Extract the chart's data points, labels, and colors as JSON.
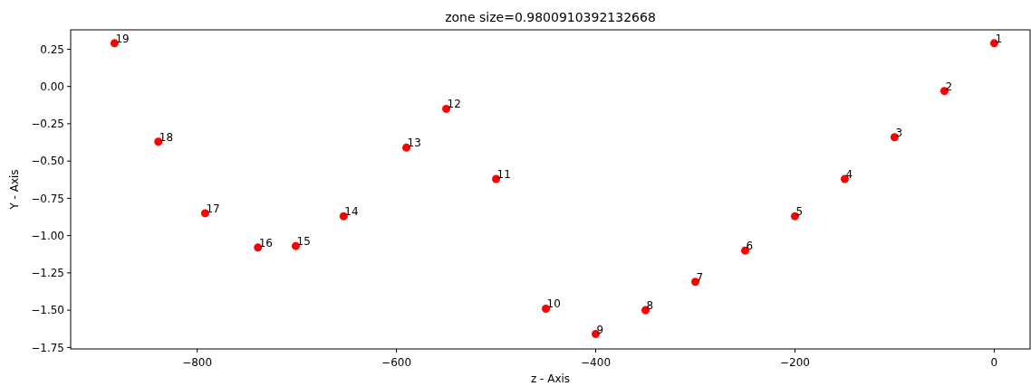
{
  "chart_data": {
    "type": "scatter",
    "title": "zone size=0.9800910392132668",
    "xlabel": "z - Axis",
    "ylabel": "Y - Axis",
    "x": [
      0,
      -50,
      -100,
      -150,
      -200,
      -250,
      -300,
      -350,
      -400,
      -450,
      -500,
      -550,
      -590,
      -653,
      -701,
      -739,
      -792,
      -839,
      -883
    ],
    "series": [
      {
        "color": "#ff0000",
        "values": [
          0.29,
          -0.03,
          -0.34,
          -0.62,
          -0.87,
          -1.1,
          -1.31,
          -1.5,
          -1.66,
          -1.49,
          -0.62,
          -0.15,
          -0.41,
          -0.87,
          -1.07,
          -1.08,
          -0.85,
          -0.37,
          0.29
        ]
      }
    ],
    "marker": "circle",
    "annotations": [
      {
        "text": "1",
        "x": 0,
        "y": 0.29
      },
      {
        "text": "2",
        "x": -50,
        "y": -0.03
      },
      {
        "text": "3",
        "x": -100,
        "y": -0.34
      },
      {
        "text": "4",
        "x": -150,
        "y": -0.62
      },
      {
        "text": "5",
        "x": -200,
        "y": -0.87
      },
      {
        "text": "6",
        "x": -250,
        "y": -1.1
      },
      {
        "text": "7",
        "x": -300,
        "y": -1.31
      },
      {
        "text": "8",
        "x": -350,
        "y": -1.5
      },
      {
        "text": "9",
        "x": -400,
        "y": -1.66
      },
      {
        "text": "10",
        "x": -450,
        "y": -1.49
      },
      {
        "text": "11",
        "x": -500,
        "y": -0.62
      },
      {
        "text": "12",
        "x": -550,
        "y": -0.15
      },
      {
        "text": "13",
        "x": -590,
        "y": -0.41
      },
      {
        "text": "14",
        "x": -653,
        "y": -0.87
      },
      {
        "text": "15",
        "x": -701,
        "y": -1.07
      },
      {
        "text": "16",
        "x": -739,
        "y": -1.08
      },
      {
        "text": "17",
        "x": -792,
        "y": -0.85
      },
      {
        "text": "18",
        "x": -839,
        "y": -0.37
      },
      {
        "text": "19",
        "x": -883,
        "y": 0.29
      }
    ],
    "xlim": [
      -927,
      36
    ],
    "ylim": [
      -1.76,
      0.38
    ],
    "xticks": [
      {
        "value": -800,
        "label": "−800"
      },
      {
        "value": -600,
        "label": "−600"
      },
      {
        "value": -400,
        "label": "−400"
      },
      {
        "value": -200,
        "label": "−200"
      },
      0
    ],
    "yticks": [
      {
        "value": 0.25,
        "label": "0.25"
      },
      {
        "value": 0,
        "label": "0.00"
      },
      {
        "value": -0.25,
        "label": "−0.25"
      },
      {
        "value": -0.5,
        "label": "−0.50"
      },
      {
        "value": -0.75,
        "label": "−0.75"
      },
      {
        "value": -1,
        "label": "−1.00"
      },
      {
        "value": -1.25,
        "label": "−1.25"
      },
      {
        "value": -1.5,
        "label": "−1.50"
      },
      {
        "value": -1.75,
        "label": "−1.75"
      }
    ]
  }
}
